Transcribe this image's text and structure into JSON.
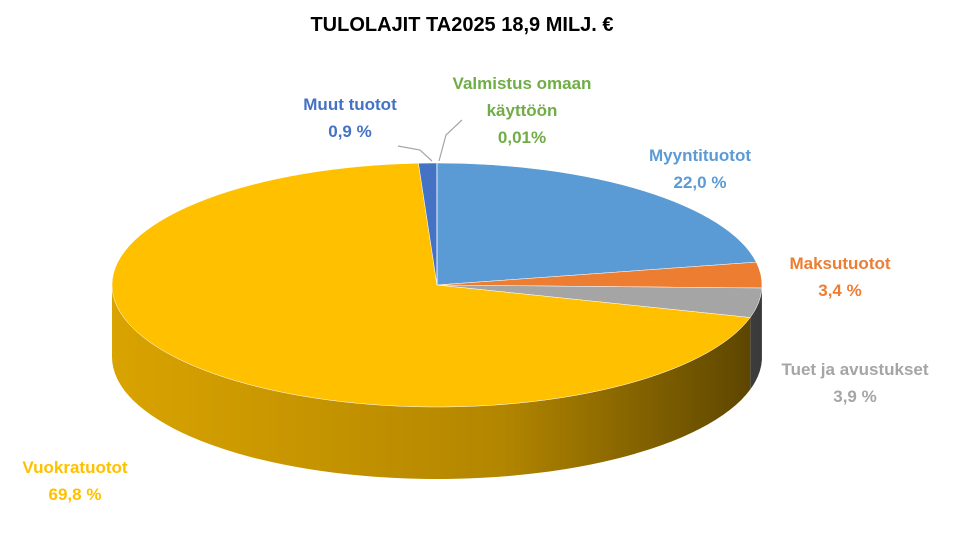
{
  "chart_data": {
    "type": "pie3d",
    "title": "TULOLAJIT TA2025 18,9 MILJ. €",
    "categories": [
      "Myyntituotot",
      "Maksutuotot",
      "Tuet ja avustukset",
      "Vuokratuotot",
      "Muut tuotot",
      "Valmistus omaan käyttöön"
    ],
    "values": [
      22.0,
      3.4,
      3.9,
      69.8,
      0.9,
      0.01
    ],
    "value_labels": [
      "22,0 %",
      "3,4 %",
      "3,9 %",
      "69,8 %",
      "0,9 %",
      "0,01%"
    ],
    "colors": [
      "#5b9bd5",
      "#ed7d31",
      "#a5a5a5",
      "#ffc000",
      "#4472c4",
      "#70ad47"
    ]
  }
}
